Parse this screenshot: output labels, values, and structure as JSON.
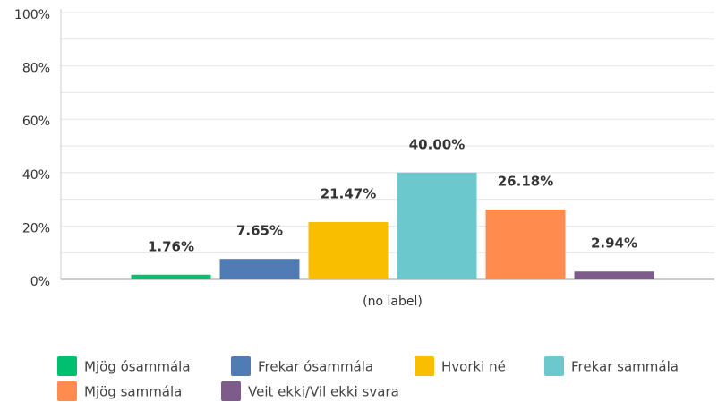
{
  "chart_data": {
    "type": "bar",
    "categories": [
      "(no label)"
    ],
    "series": [
      {
        "name": "Mjög ósammála",
        "color": "#00bf6f",
        "values": [
          1.76
        ],
        "value_labels": [
          "1.76%"
        ]
      },
      {
        "name": "Frekar ósammála",
        "color": "#507cb6",
        "values": [
          7.65
        ],
        "value_labels": [
          "7.65%"
        ]
      },
      {
        "name": "Hvorki né",
        "color": "#f9be00",
        "values": [
          21.47
        ],
        "value_labels": [
          "21.47%"
        ]
      },
      {
        "name": "Frekar sammála",
        "color": "#6bc8cd",
        "values": [
          40.0
        ],
        "value_labels": [
          "40.00%"
        ]
      },
      {
        "name": "Mjög sammála",
        "color": "#ff8b4f",
        "values": [
          26.18
        ],
        "value_labels": [
          "26.18%"
        ]
      },
      {
        "name": "Veit ekki/Vil ekki svara",
        "color": "#7d5c8b",
        "values": [
          2.94
        ],
        "value_labels": [
          "2.94%"
        ]
      }
    ],
    "ylim": [
      0,
      100
    ],
    "yticks": [
      {
        "value": 0,
        "label": "0%"
      },
      {
        "value": 20,
        "label": "20%"
      },
      {
        "value": 40,
        "label": "40%"
      },
      {
        "value": 60,
        "label": "60%"
      },
      {
        "value": 80,
        "label": "80%"
      },
      {
        "value": 100,
        "label": "100%"
      }
    ],
    "yminorticks": [
      10,
      30,
      50,
      70,
      90
    ],
    "grid": true,
    "legend": "bottom"
  }
}
